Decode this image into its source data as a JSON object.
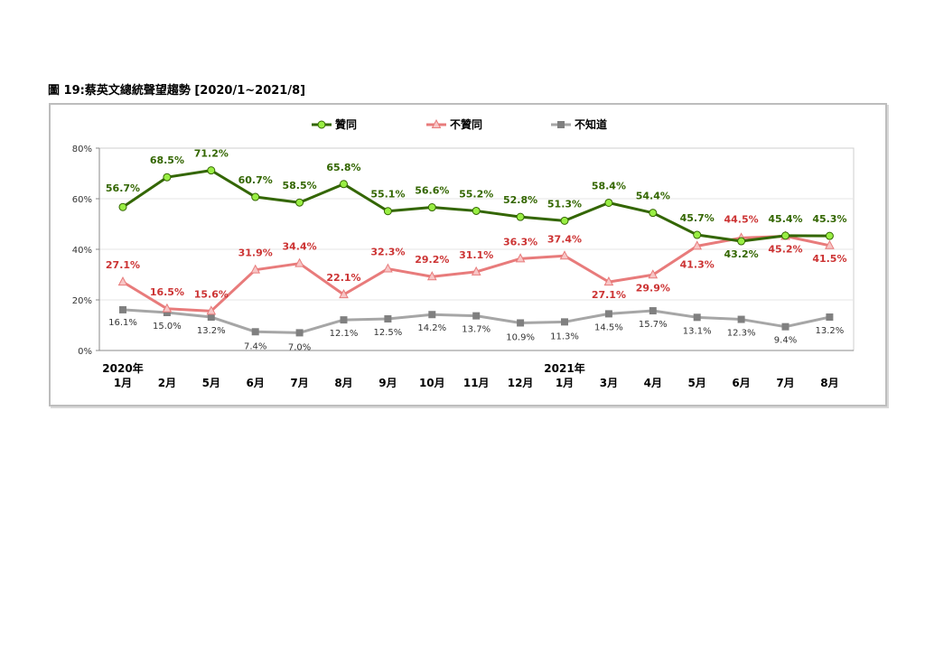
{
  "figure": {
    "title": "圖 19:蔡英文總統聲望趨勢  [2020/1~2021/8]"
  },
  "colors": {
    "approve": "#336600",
    "approve_marker": "#99ee44",
    "disapprove": "#e87b7b",
    "disapprove_label": "#cc3333",
    "unknown": "#a6a6a6",
    "unknown_marker": "#808080"
  },
  "chart_data": {
    "type": "line",
    "x": [
      [
        "2020年",
        "1月"
      ],
      [
        "",
        "2月"
      ],
      [
        "",
        "5月"
      ],
      [
        "",
        "6月"
      ],
      [
        "",
        "7月"
      ],
      [
        "",
        "8月"
      ],
      [
        "",
        "9月"
      ],
      [
        "",
        "10月"
      ],
      [
        "",
        "11月"
      ],
      [
        "",
        "12月"
      ],
      [
        "2021年",
        "1月"
      ],
      [
        "",
        "3月"
      ],
      [
        "",
        "4月"
      ],
      [
        "",
        "5月"
      ],
      [
        "",
        "6月"
      ],
      [
        "",
        "7月"
      ],
      [
        "",
        "8月"
      ]
    ],
    "yticks": [
      "0%",
      "20%",
      "40%",
      "60%",
      "80%"
    ],
    "ylim": [
      0,
      80
    ],
    "series": [
      {
        "name": "贊同",
        "key": "approve",
        "values": [
          56.7,
          68.5,
          71.2,
          60.7,
          58.5,
          65.8,
          55.1,
          56.6,
          55.2,
          52.8,
          51.3,
          58.4,
          54.4,
          45.7,
          43.2,
          45.4,
          45.3
        ],
        "labels": [
          "56.7%",
          "68.5%",
          "71.2%",
          "60.7%",
          "58.5%",
          "65.8%",
          "55.1%",
          "56.6%",
          "55.2%",
          "52.8%",
          "51.3%",
          "58.4%",
          "54.4%",
          "45.7%",
          "43.2%",
          "45.4%",
          "45.3%"
        ]
      },
      {
        "name": "不贊同",
        "key": "disapprove",
        "values": [
          27.1,
          16.5,
          15.6,
          31.9,
          34.4,
          22.1,
          32.3,
          29.2,
          31.1,
          36.3,
          37.4,
          27.1,
          29.9,
          41.3,
          44.5,
          45.2,
          41.5
        ],
        "labels": [
          "27.1%",
          "16.5%",
          "15.6%",
          "31.9%",
          "34.4%",
          "22.1%",
          "32.3%",
          "29.2%",
          "31.1%",
          "36.3%",
          "37.4%",
          "27.1%",
          "29.9%",
          "41.3%",
          "44.5%",
          "45.2%",
          "41.5%"
        ]
      },
      {
        "name": "不知道",
        "key": "unknown",
        "values": [
          16.1,
          15.0,
          13.2,
          7.4,
          7.0,
          12.1,
          12.5,
          14.2,
          13.7,
          10.9,
          11.3,
          14.5,
          15.7,
          13.1,
          12.3,
          9.4,
          13.2
        ],
        "labels": [
          "16.1%",
          "15.0%",
          "13.2%",
          "7.4%",
          "7.0%",
          "12.1%",
          "12.5%",
          "14.2%",
          "13.7%",
          "10.9%",
          "11.3%",
          "14.5%",
          "15.7%",
          "13.1%",
          "12.3%",
          "9.4%",
          "13.2%"
        ]
      }
    ],
    "legend_position": "top",
    "grid": true
  }
}
